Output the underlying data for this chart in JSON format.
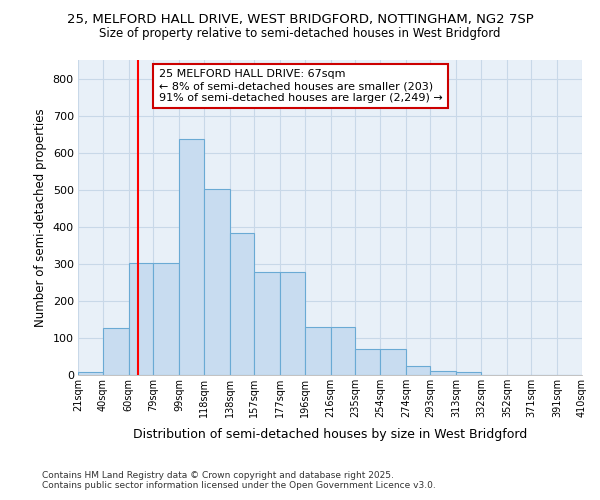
{
  "title1": "25, MELFORD HALL DRIVE, WEST BRIDGFORD, NOTTINGHAM, NG2 7SP",
  "title2": "Size of property relative to semi-detached houses in West Bridgford",
  "xlabel": "Distribution of semi-detached houses by size in West Bridgford",
  "ylabel": "Number of semi-detached properties",
  "footer1": "Contains HM Land Registry data © Crown copyright and database right 2025.",
  "footer2": "Contains public sector information licensed under the Open Government Licence v3.0.",
  "bin_labels": [
    "21sqm",
    "40sqm",
    "60sqm",
    "79sqm",
    "99sqm",
    "118sqm",
    "138sqm",
    "157sqm",
    "177sqm",
    "196sqm",
    "216sqm",
    "235sqm",
    "254sqm",
    "274sqm",
    "293sqm",
    "313sqm",
    "332sqm",
    "352sqm",
    "371sqm",
    "391sqm",
    "410sqm"
  ],
  "bar_values": [
    8,
    128,
    303,
    303,
    638,
    503,
    383,
    278,
    278,
    130,
    130,
    70,
    70,
    25,
    10,
    8,
    0,
    0,
    0,
    0
  ],
  "bar_color": "#c8dcf0",
  "bar_edge_color": "#6aaad4",
  "figure_bg": "#ffffff",
  "axes_bg": "#e8f0f8",
  "grid_color": "#c8d8e8",
  "property_line_x": 67,
  "bin_edges": [
    21,
    40,
    60,
    79,
    99,
    118,
    138,
    157,
    177,
    196,
    216,
    235,
    254,
    274,
    293,
    313,
    332,
    352,
    371,
    391,
    410
  ],
  "annotation_title": "25 MELFORD HALL DRIVE: 67sqm",
  "annotation_line1": "← 8% of semi-detached houses are smaller (203)",
  "annotation_line2": "91% of semi-detached houses are larger (2,249) →",
  "annotation_box_color": "#ffffff",
  "annotation_box_edge": "#cc0000",
  "ylim": [
    0,
    850
  ],
  "yticks": [
    0,
    100,
    200,
    300,
    400,
    500,
    600,
    700,
    800
  ]
}
